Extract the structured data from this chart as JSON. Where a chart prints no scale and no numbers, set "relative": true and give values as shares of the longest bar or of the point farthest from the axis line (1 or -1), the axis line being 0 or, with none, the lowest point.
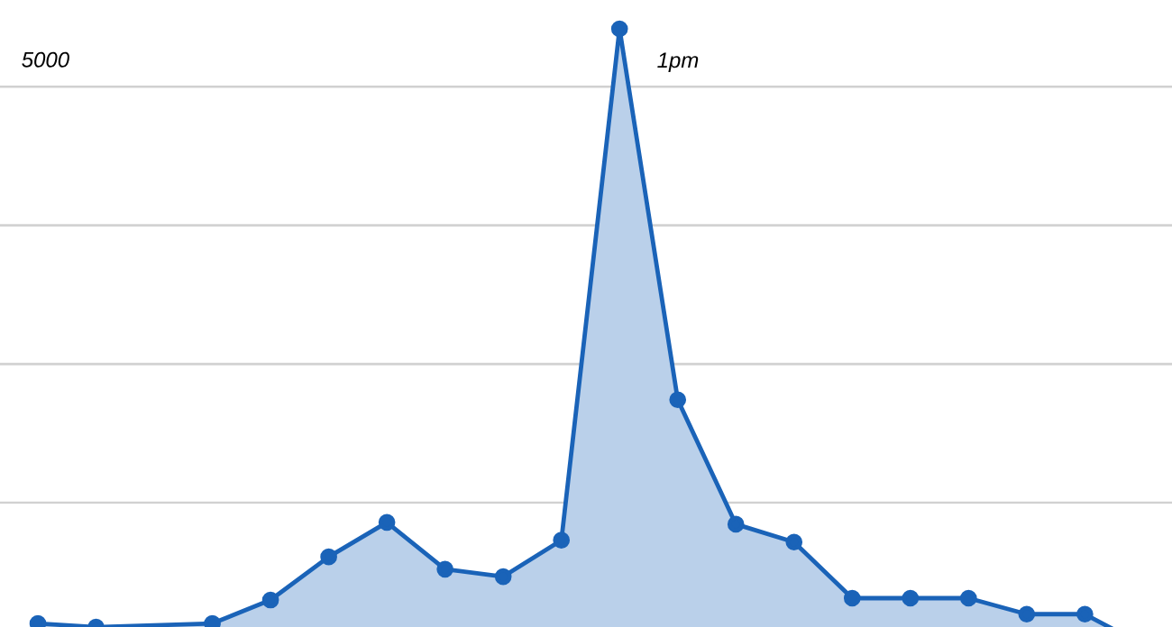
{
  "chart_data": {
    "type": "area",
    "relative": true,
    "grid": "y",
    "marker": "circle",
    "line_style": "solid",
    "categories": [
      null,
      null,
      null,
      null,
      null,
      null,
      null,
      null,
      null,
      null,
      null,
      null,
      null,
      null,
      null,
      null,
      null,
      null,
      null,
      null
    ],
    "series": [
      {
        "color": "#1a63b8",
        "values": [
          0.035,
          0.029,
          null,
          0.035,
          0.073,
          0.143,
          0.199,
          0.123,
          0.111,
          0.17,
          1,
          0.398,
          0.196,
          0.167,
          0.076,
          0.076,
          0.076,
          0.05,
          0.05,
          0
        ]
      }
    ],
    "annotations": [
      "5000",
      "1pm"
    ]
  }
}
